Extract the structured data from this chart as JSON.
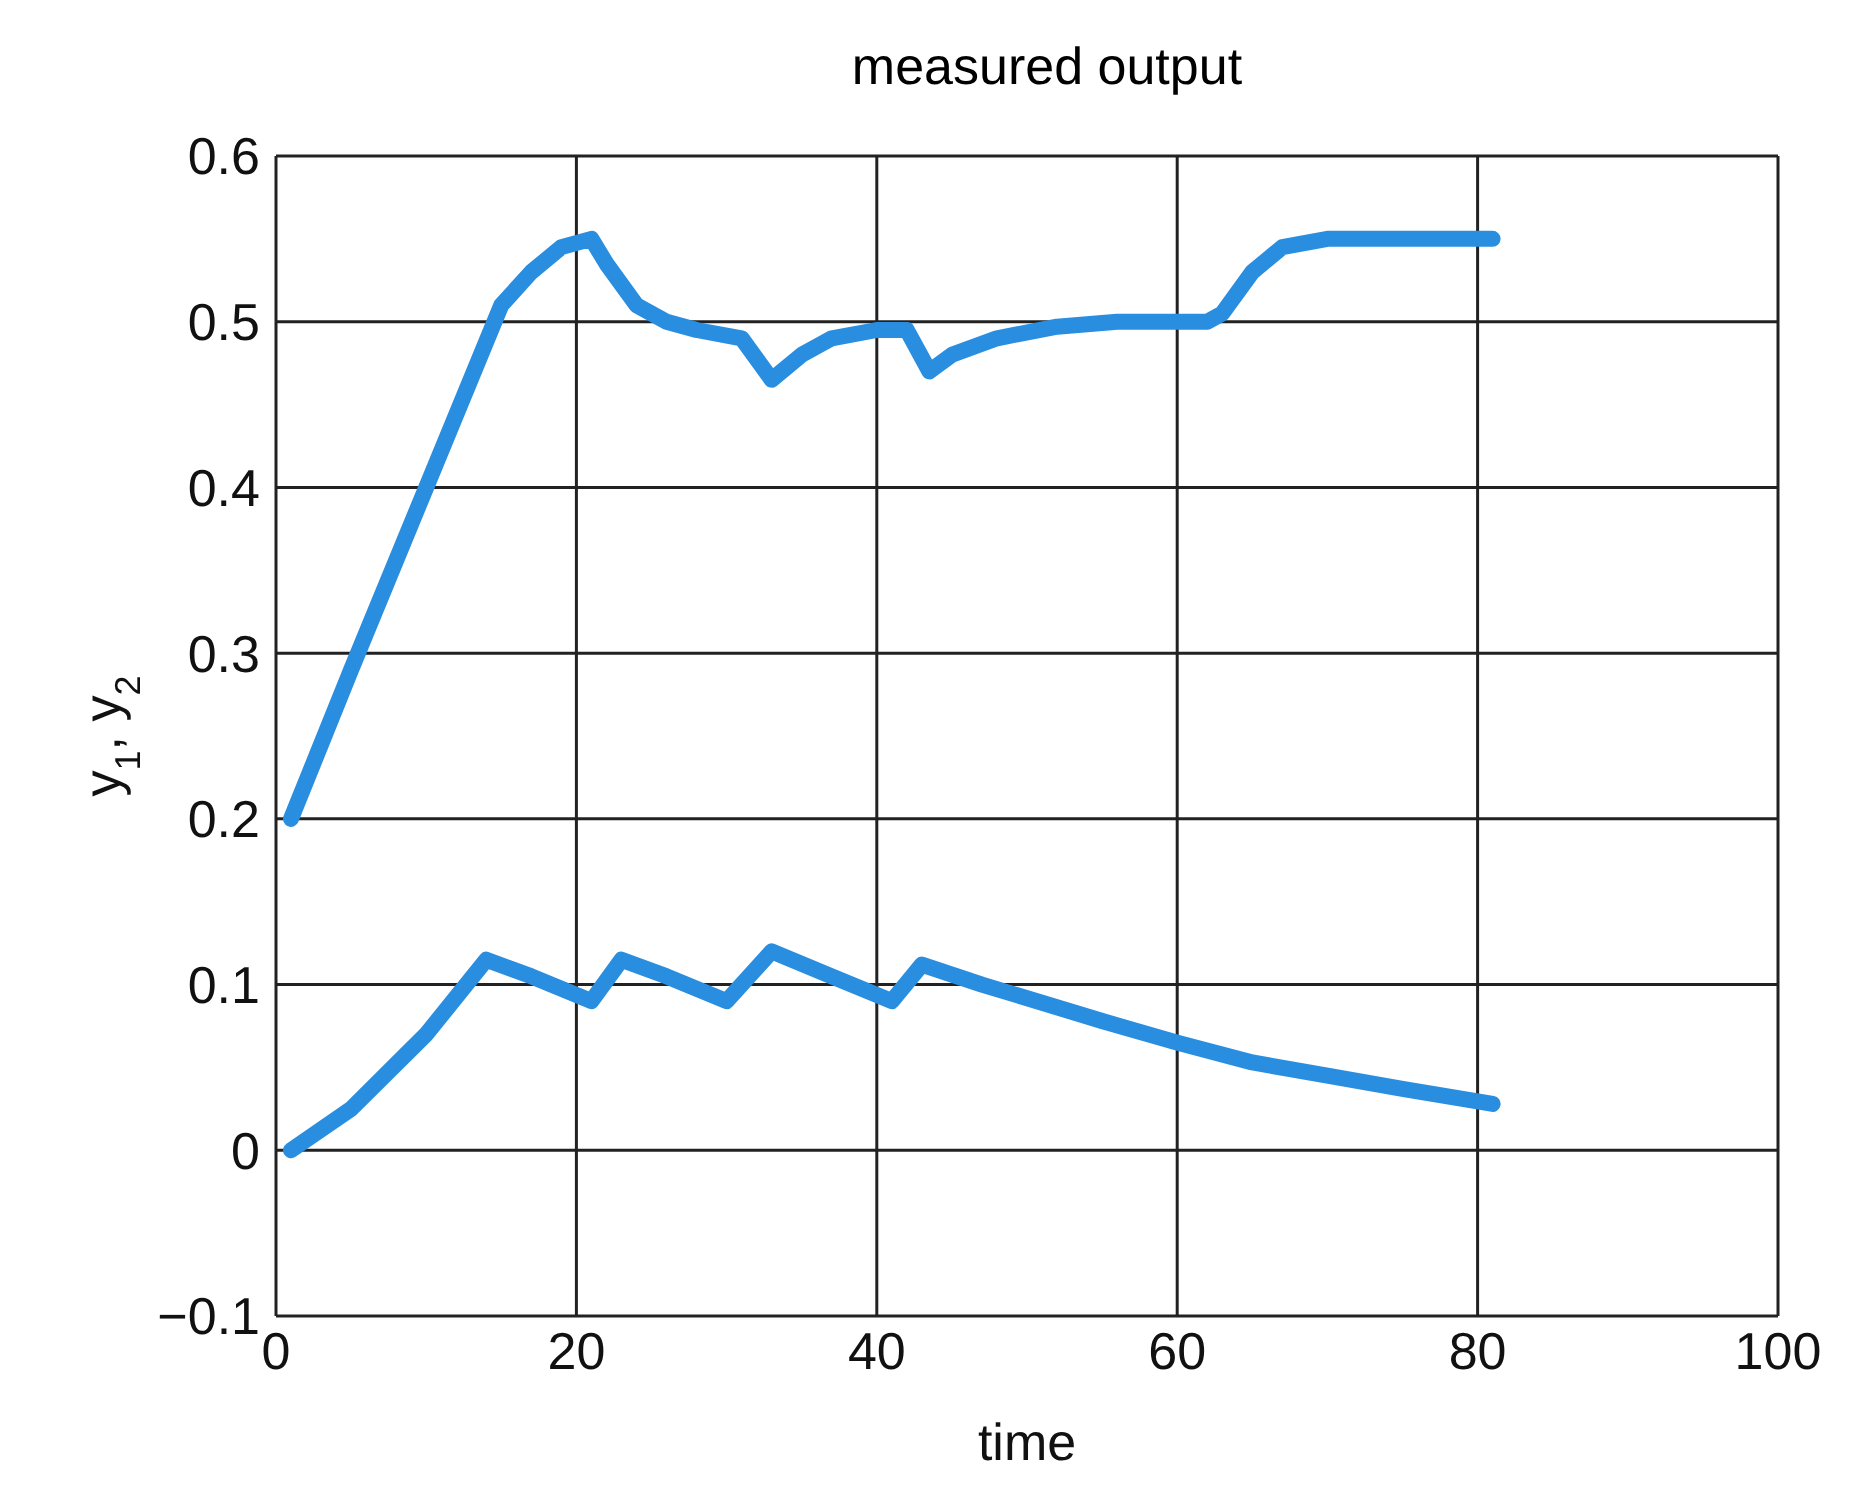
{
  "chart_data": {
    "type": "line",
    "title": "measured output",
    "xlabel": "time",
    "ylabel": "y$_{1}$, y$_{2}$",
    "xlim": [
      0,
      100
    ],
    "xticks": [
      0,
      20,
      40,
      60,
      80,
      100
    ],
    "ylim": [
      -0.1,
      0.6
    ],
    "yticks": [
      -0.1,
      0,
      0.1,
      0.2,
      0.3,
      0.4,
      0.5,
      0.6
    ],
    "grid": true,
    "marker": "none",
    "line_style": "solid",
    "series": [
      {
        "color": "#2a8ee0",
        "x": [
          1,
          5,
          10,
          15,
          17,
          19,
          21,
          22,
          24,
          26,
          28,
          31,
          33,
          35,
          37,
          40,
          42,
          43.5,
          45,
          48,
          52,
          56,
          62,
          63,
          65,
          67,
          70,
          81
        ],
        "values": [
          0.2,
          0.29,
          0.4,
          0.51,
          0.53,
          0.545,
          0.55,
          0.535,
          0.51,
          0.5,
          0.495,
          0.49,
          0.465,
          0.48,
          0.49,
          0.495,
          0.495,
          0.47,
          0.48,
          0.49,
          0.497,
          0.5,
          0.5,
          0.505,
          0.53,
          0.545,
          0.55,
          0.55
        ]
      },
      {
        "color": "#2a8ee0",
        "x": [
          1,
          5,
          10,
          14,
          17,
          21,
          23,
          26,
          30,
          33,
          37,
          41,
          43,
          47,
          55,
          60,
          65,
          70,
          75,
          81
        ],
        "values": [
          0,
          0.025,
          0.07,
          0.115,
          0.105,
          0.09,
          0.115,
          0.105,
          0.09,
          0.12,
          0.105,
          0.09,
          0.112,
          0.1,
          0.078,
          0.065,
          0.053,
          0.045,
          0.037,
          0.028
        ]
      }
    ]
  }
}
